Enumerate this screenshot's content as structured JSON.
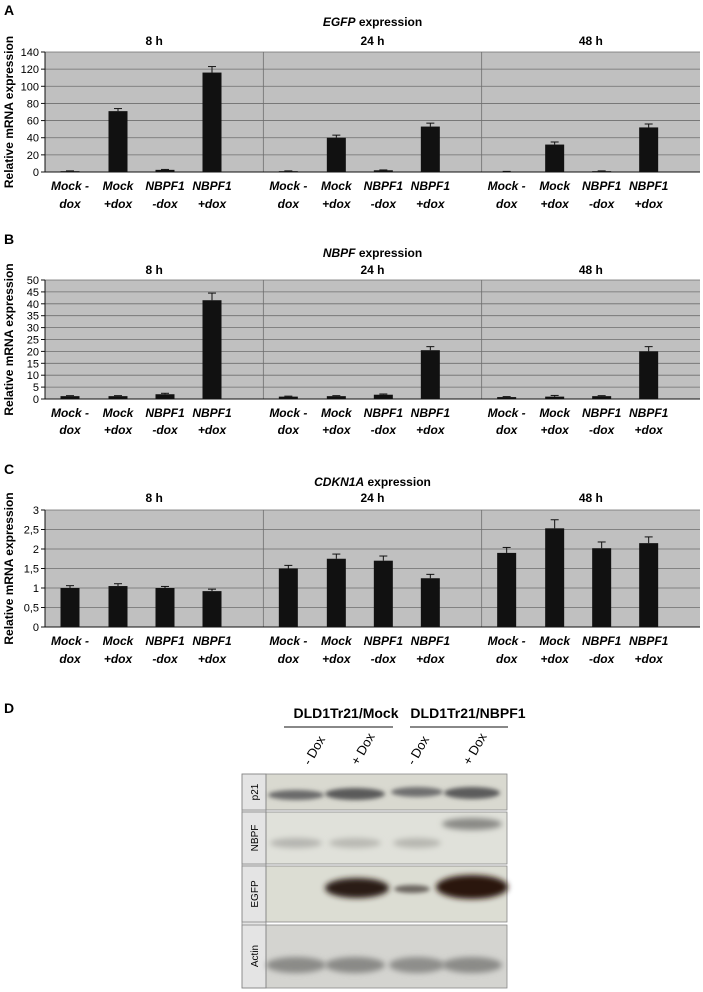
{
  "panels": {
    "a": "A",
    "b": "B",
    "c": "C",
    "d": "D"
  },
  "colors": {
    "plot_bg": "#c0c0c0",
    "bar": "#111111",
    "grid": "#6e6e6e"
  },
  "chart_data": [
    {
      "type": "bar",
      "title_gene": "EGFP",
      "title_rest": " expression",
      "ylabel": "Relative mRNA expression",
      "ylim": [
        0,
        140
      ],
      "yticks": [
        0,
        20,
        40,
        60,
        80,
        100,
        120,
        140
      ],
      "timepoints": [
        "8 h",
        "24 h",
        "48 h"
      ],
      "categories": [
        {
          "line1": "Mock -",
          "line2": "dox"
        },
        {
          "line1": "Mock",
          "line2": "+dox"
        },
        {
          "line1": "NBPF1",
          "line2": "-dox"
        },
        {
          "line1": "NBPF1",
          "line2": "+dox"
        }
      ],
      "series": [
        {
          "name": "8 h",
          "values": [
            1,
            71,
            2.5,
            116
          ],
          "errors": [
            0.3,
            3,
            0.5,
            7
          ]
        },
        {
          "name": "24 h",
          "values": [
            1,
            40,
            2,
            53
          ],
          "errors": [
            0.3,
            3,
            0.4,
            4
          ]
        },
        {
          "name": "48 h",
          "values": [
            0.5,
            32,
            1,
            52
          ],
          "errors": [
            0.2,
            3,
            0.3,
            4
          ]
        }
      ]
    },
    {
      "type": "bar",
      "title_gene": "NBPF",
      "title_rest": " expression",
      "ylabel": "Relative mRNA expression",
      "ylim": [
        0,
        50
      ],
      "yticks": [
        0,
        5,
        10,
        15,
        20,
        25,
        30,
        35,
        40,
        45,
        50
      ],
      "timepoints": [
        "8 h",
        "24 h",
        "48 h"
      ],
      "categories": [
        {
          "line1": "Mock -",
          "line2": "dox"
        },
        {
          "line1": "Mock",
          "line2": "+dox"
        },
        {
          "line1": "NBPF1",
          "line2": "-dox"
        },
        {
          "line1": "NBPF1",
          "line2": "+dox"
        }
      ],
      "series": [
        {
          "name": "8 h",
          "values": [
            1.2,
            1.2,
            2,
            41.5
          ],
          "errors": [
            0.2,
            0.2,
            0.4,
            3
          ]
        },
        {
          "name": "24 h",
          "values": [
            1,
            1.2,
            1.8,
            20.5
          ],
          "errors": [
            0.2,
            0.2,
            0.3,
            1.5
          ]
        },
        {
          "name": "48 h",
          "values": [
            0.8,
            1,
            1.2,
            20
          ],
          "errors": [
            0.2,
            0.5,
            0.2,
            2
          ]
        }
      ]
    },
    {
      "type": "bar",
      "title_gene": "CDKN1A",
      "title_rest": "  expression",
      "ylabel": "Relative mRNA expression",
      "ylim": [
        0,
        3
      ],
      "yticks": [
        0,
        0.5,
        1,
        1.5,
        2,
        2.5,
        3
      ],
      "ytick_labels": [
        "0",
        "0,5",
        "1",
        "1,5",
        "2",
        "2,5",
        "3"
      ],
      "timepoints": [
        "8 h",
        "24 h",
        "48 h"
      ],
      "categories": [
        {
          "line1": "Mock -",
          "line2": "dox"
        },
        {
          "line1": "Mock",
          "line2": "+dox"
        },
        {
          "line1": "NBPF1",
          "line2": "-dox"
        },
        {
          "line1": "NBPF1",
          "line2": "+dox"
        }
      ],
      "series": [
        {
          "name": "8 h",
          "values": [
            1.0,
            1.05,
            1.0,
            0.92
          ],
          "errors": [
            0.06,
            0.06,
            0.04,
            0.05
          ]
        },
        {
          "name": "24 h",
          "values": [
            1.5,
            1.75,
            1.7,
            1.25
          ],
          "errors": [
            0.08,
            0.12,
            0.12,
            0.1
          ]
        },
        {
          "name": "48 h",
          "values": [
            1.9,
            2.53,
            2.02,
            2.15
          ],
          "errors": [
            0.14,
            0.22,
            0.16,
            0.16
          ]
        }
      ]
    }
  ],
  "blot": {
    "group_mock": "DLD1Tr21/Mock",
    "group_nbpf1": "DLD1Tr21/NBPF1",
    "lanes": [
      "- Dox",
      "+ Dox",
      "- Dox",
      "+ Dox"
    ],
    "rows": [
      "p21",
      "NBPF",
      "EGFP",
      "Actin"
    ]
  }
}
